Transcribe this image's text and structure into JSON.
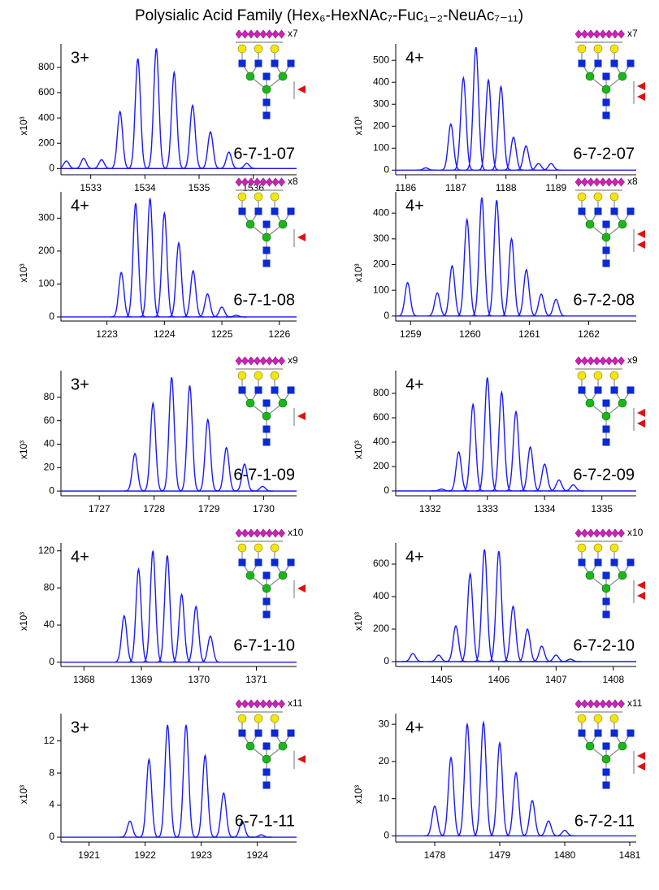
{
  "title": "Polysialic Acid Family (Hex₆-HexNAc₇-Fuc₁₋₂-NeuAc₇₋₁₁)",
  "chart_data": [
    {
      "type": "spectrum",
      "charge": "3+",
      "annotation": "6-7-1-07",
      "glycan_label": "x7",
      "ylabel": "x10³",
      "color": "#1a1aff",
      "x": [
        1532.55,
        1532.87,
        1533.2,
        1533.54,
        1533.87,
        1534.21,
        1534.54,
        1534.88,
        1535.21,
        1535.55,
        1535.88
      ],
      "values": [
        60,
        80,
        70,
        450,
        870,
        950,
        760,
        500,
        290,
        130,
        40
      ],
      "xlim": [
        1532.45,
        1536.8
      ],
      "ylim": [
        -30,
        960
      ],
      "xticks": [
        1533,
        1534,
        1535,
        1536
      ],
      "yticks": [
        0,
        200,
        400,
        600,
        800
      ]
    },
    {
      "type": "spectrum",
      "charge": "4+",
      "annotation": "6-7-2-07",
      "glycan_label": "x7",
      "ylabel": "x10³",
      "color": "#1a1aff",
      "x": [
        1186.4,
        1186.9,
        1187.15,
        1187.4,
        1187.65,
        1187.9,
        1188.15,
        1188.4,
        1188.65,
        1188.9
      ],
      "values": [
        10,
        210,
        420,
        560,
        410,
        380,
        150,
        110,
        30,
        30
      ],
      "xlim": [
        1185.8,
        1190.6
      ],
      "ylim": [
        -10,
        560
      ],
      "xticks": [
        1186,
        1187,
        1188,
        1189
      ],
      "yticks": [
        0,
        100,
        200,
        300,
        400,
        500
      ]
    },
    {
      "type": "spectrum",
      "charge": "4+",
      "annotation": "6-7-1-08",
      "glycan_label": "x8",
      "ylabel": "x10³",
      "color": "#1a1aff",
      "x": [
        1223.25,
        1223.5,
        1223.75,
        1224.0,
        1224.25,
        1224.5,
        1224.75,
        1225.0,
        1225.25
      ],
      "values": [
        135,
        345,
        360,
        315,
        225,
        140,
        70,
        30,
        5
      ],
      "xlim": [
        1222.2,
        1226.3
      ],
      "ylim": [
        -5,
        370
      ],
      "xticks": [
        1223,
        1224,
        1225,
        1226
      ],
      "yticks": [
        0,
        100,
        200,
        300
      ]
    },
    {
      "type": "spectrum",
      "charge": "4+",
      "annotation": "6-7-2-08",
      "glycan_label": "x8",
      "ylabel": "x10³",
      "color": "#1a1aff",
      "x": [
        1258.95,
        1259.45,
        1259.7,
        1259.95,
        1260.2,
        1260.45,
        1260.7,
        1260.95,
        1261.2,
        1261.45
      ],
      "values": [
        130,
        90,
        195,
        375,
        460,
        450,
        300,
        180,
        85,
        65
      ],
      "xlim": [
        1258.75,
        1262.8
      ],
      "ylim": [
        -10,
        470
      ],
      "xticks": [
        1259,
        1260,
        1261,
        1262
      ],
      "yticks": [
        0,
        100,
        200,
        300,
        400
      ]
    },
    {
      "type": "spectrum",
      "charge": "3+",
      "annotation": "6-7-1-09",
      "glycan_label": "x9",
      "ylabel": "x10³",
      "color": "#1a1aff",
      "x": [
        1727.65,
        1727.98,
        1728.32,
        1728.65,
        1728.98,
        1729.32,
        1729.65,
        1729.98
      ],
      "values": [
        32,
        75,
        97,
        90,
        61,
        37,
        23,
        4
      ],
      "xlim": [
        1726.3,
        1730.6
      ],
      "ylim": [
        -2,
        100
      ],
      "xticks": [
        1727,
        1728,
        1729,
        1730
      ],
      "yticks": [
        0,
        20,
        40,
        60,
        80
      ]
    },
    {
      "type": "spectrum",
      "charge": "4+",
      "annotation": "6-7-2-09",
      "glycan_label": "x9",
      "ylabel": "x10³",
      "color": "#1a1aff",
      "x": [
        1332.2,
        1332.5,
        1332.75,
        1333.0,
        1333.25,
        1333.5,
        1333.75,
        1334.0,
        1334.25,
        1334.5
      ],
      "values": [
        15,
        320,
        710,
        930,
        810,
        650,
        360,
        220,
        90,
        50
      ],
      "xlim": [
        1331.4,
        1335.6
      ],
      "ylim": [
        -20,
        960
      ],
      "xticks": [
        1332,
        1333,
        1334,
        1335
      ],
      "yticks": [
        0,
        200,
        400,
        600,
        800
      ]
    },
    {
      "type": "spectrum",
      "charge": "4+",
      "annotation": "6-7-1-10",
      "glycan_label": "x10",
      "ylabel": "x10³",
      "color": "#1a1aff",
      "x": [
        1368.7,
        1368.95,
        1369.2,
        1369.45,
        1369.7,
        1369.95,
        1370.2
      ],
      "values": [
        50,
        100,
        120,
        115,
        73,
        60,
        28
      ],
      "xlim": [
        1367.6,
        1371.7
      ],
      "ylim": [
        -2,
        125
      ],
      "xticks": [
        1368,
        1369,
        1370,
        1371
      ],
      "yticks": [
        0,
        40,
        80,
        120
      ]
    },
    {
      "type": "spectrum",
      "charge": "4+",
      "annotation": "6-7-2-10",
      "glycan_label": "x10",
      "ylabel": "x10³",
      "color": "#1a1aff",
      "x": [
        1404.5,
        1404.95,
        1405.25,
        1405.5,
        1405.75,
        1406.0,
        1406.25,
        1406.5,
        1406.75,
        1407.0,
        1407.25
      ],
      "values": [
        50,
        40,
        220,
        540,
        690,
        680,
        340,
        200,
        95,
        40,
        15
      ],
      "xlim": [
        1404.2,
        1408.4
      ],
      "ylim": [
        -15,
        710
      ],
      "xticks": [
        1405,
        1406,
        1407,
        1408
      ],
      "yticks": [
        0,
        200,
        400,
        600
      ]
    },
    {
      "type": "spectrum",
      "charge": "3+",
      "annotation": "6-7-1-11",
      "glycan_label": "x11",
      "ylabel": "x10³",
      "color": "#1a1aff",
      "x": [
        1921.73,
        1922.07,
        1922.4,
        1922.73,
        1923.07,
        1923.4,
        1923.73,
        1924.07
      ],
      "values": [
        2,
        9.7,
        14,
        14,
        10.2,
        5.5,
        2,
        0.3
      ],
      "xlim": [
        1920.5,
        1924.7
      ],
      "ylim": [
        -0.3,
        15
      ],
      "xticks": [
        1921,
        1922,
        1923,
        1924
      ],
      "yticks": [
        0,
        4,
        8,
        12
      ]
    },
    {
      "type": "spectrum",
      "charge": "4+",
      "annotation": "6-7-2-11",
      "glycan_label": "x11",
      "ylabel": "x10³",
      "color": "#1a1aff",
      "x": [
        1478.0,
        1478.25,
        1478.5,
        1478.75,
        1479.0,
        1479.25,
        1479.5,
        1479.75,
        1480.0
      ],
      "values": [
        8,
        21,
        30,
        30.5,
        25,
        17,
        9.5,
        4,
        1.5
      ],
      "xlim": [
        1477.4,
        1481.1
      ],
      "ylim": [
        -1,
        32
      ],
      "xticks": [
        1478,
        1479,
        1480,
        1481
      ],
      "yticks": [
        0,
        10,
        20,
        30
      ]
    }
  ]
}
